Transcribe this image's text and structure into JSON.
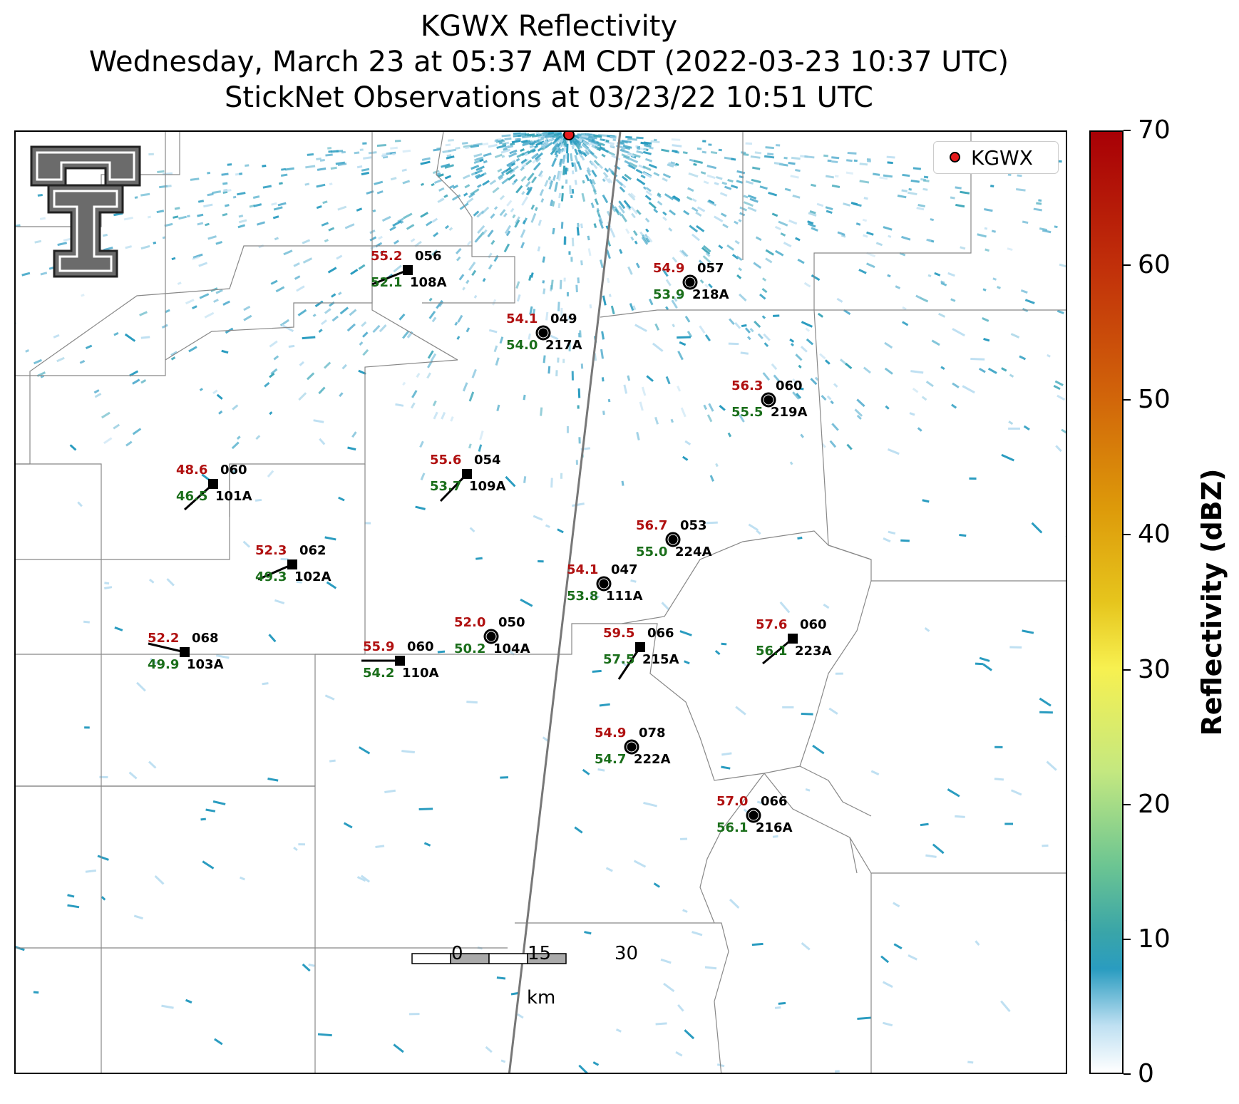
{
  "title": {
    "line1": "KGWX Reflectivity",
    "line2": "Wednesday, March 23 at 05:37 AM CDT (2022-03-23 10:37 UTC)",
    "line3": "StickNet Observations at 03/23/22 10:51 UTC"
  },
  "legend": {
    "label": "KGWX",
    "marker_color": "#e41a1c"
  },
  "colorbar": {
    "label": "Reflectivity (dBZ)",
    "ticks": [
      "0",
      "10",
      "20",
      "30",
      "40",
      "50",
      "60",
      "70"
    ],
    "range": [
      0,
      70
    ]
  },
  "scale_bar": {
    "ticks": [
      "0",
      "15",
      "30"
    ],
    "unit": "km"
  },
  "logo": {
    "name": "Texas Tech double-T logo"
  },
  "stations": [
    {
      "id": "108A",
      "temp": "55.2",
      "dew": "52.1",
      "pres": "056",
      "sky": "square"
    },
    {
      "id": "218A",
      "temp": "54.9",
      "dew": "53.9",
      "pres": "057",
      "sky": "circle"
    },
    {
      "id": "217A",
      "temp": "54.1",
      "dew": "54.0",
      "pres": "049",
      "sky": "circle"
    },
    {
      "id": "219A",
      "temp": "56.3",
      "dew": "55.5",
      "pres": "060",
      "sky": "circle"
    },
    {
      "id": "101A",
      "temp": "48.6",
      "dew": "46.5",
      "pres": "060",
      "sky": "square"
    },
    {
      "id": "109A",
      "temp": "55.6",
      "dew": "53.7",
      "pres": "054",
      "sky": "square"
    },
    {
      "id": "224A",
      "temp": "56.7",
      "dew": "55.0",
      "pres": "053",
      "sky": "circle"
    },
    {
      "id": "102A",
      "temp": "52.3",
      "dew": "49.3",
      "pres": "062",
      "sky": "square"
    },
    {
      "id": "111A",
      "temp": "54.1",
      "dew": "53.8",
      "pres": "047",
      "sky": "circle"
    },
    {
      "id": "104A",
      "temp": "52.0",
      "dew": "50.2",
      "pres": "050",
      "sky": "circle"
    },
    {
      "id": "103A",
      "temp": "52.2",
      "dew": "49.9",
      "pres": "068",
      "sky": "square"
    },
    {
      "id": "110A",
      "temp": "55.9",
      "dew": "54.2",
      "pres": "060",
      "sky": "square"
    },
    {
      "id": "215A",
      "temp": "59.5",
      "dew": "57.5",
      "pres": "066",
      "sky": "square"
    },
    {
      "id": "223A",
      "temp": "57.6",
      "dew": "56.1",
      "pres": "060",
      "sky": "square"
    },
    {
      "id": "222A",
      "temp": "54.9",
      "dew": "54.7",
      "pres": "078",
      "sky": "circle"
    },
    {
      "id": "216A",
      "temp": "57.0",
      "dew": "56.1",
      "pres": "066",
      "sky": "circle"
    }
  ]
}
